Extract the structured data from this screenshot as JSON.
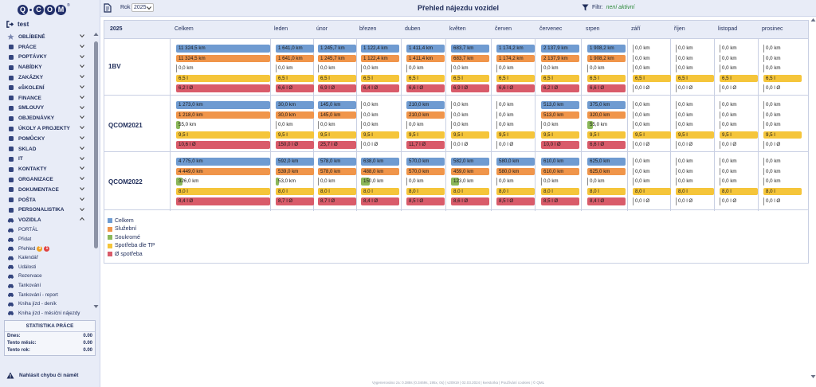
{
  "brand": {
    "logo_letters": [
      "Q",
      "C",
      "O",
      "M"
    ],
    "reg": "®"
  },
  "user": {
    "name": "test"
  },
  "menu": {
    "items": [
      {
        "label": "OBLÍBENÉ",
        "icon": "star-icon"
      },
      {
        "label": "PRÁCE",
        "icon": "briefcase-icon"
      },
      {
        "label": "POPTÁVKY",
        "icon": "cart-icon"
      },
      {
        "label": "NABÍDKY",
        "icon": "document-icon"
      },
      {
        "label": "ZAKÁZKY",
        "icon": "clipboard-icon"
      },
      {
        "label": "eŠKOLENÍ",
        "icon": "graduation-icon"
      },
      {
        "label": "FINANCE",
        "icon": "money-icon"
      },
      {
        "label": "SMLOUVY",
        "icon": "contract-icon"
      },
      {
        "label": "OBJEDNÁVKY",
        "icon": "order-icon"
      },
      {
        "label": "ÚKOLY A PROJEKTY",
        "icon": "tasks-icon"
      },
      {
        "label": "POMŮCKY",
        "icon": "tools-icon"
      },
      {
        "label": "SKLAD",
        "icon": "warehouse-icon"
      },
      {
        "label": "IT",
        "icon": "computer-icon"
      },
      {
        "label": "KONTAKTY",
        "icon": "contacts-icon"
      },
      {
        "label": "ORGANIZACE",
        "icon": "organization-icon"
      },
      {
        "label": "DOKUMENTACE",
        "icon": "folder-icon"
      },
      {
        "label": "POŠTA",
        "icon": "mail-icon"
      },
      {
        "label": "PERSONALISTIKA",
        "icon": "people-icon"
      },
      {
        "label": "VOZIDLA",
        "icon": "car-icon"
      }
    ],
    "sub_items": [
      {
        "label": "PORTÁL"
      },
      {
        "label": "Přidat"
      },
      {
        "label": "Přehled",
        "badges": [
          "3",
          "1"
        ]
      },
      {
        "label": "Kalendář"
      },
      {
        "label": "Události"
      },
      {
        "label": "Rezervace"
      },
      {
        "label": "Tankování"
      },
      {
        "label": "Tankování - report"
      },
      {
        "label": "Kniha jízd - deník"
      },
      {
        "label": "Kniha jízd - měsíční nájezdy"
      }
    ]
  },
  "stats": {
    "title": "STATISTIKA PRÁCE",
    "rows": [
      {
        "label": "Dnes:",
        "value": "0.00"
      },
      {
        "label": "Tento měsíc:",
        "value": "0.00"
      },
      {
        "label": "Tento rok:",
        "value": "0.00"
      }
    ]
  },
  "report": {
    "label": "Nahlásit chybu či námět"
  },
  "topbar": {
    "year_label": "Rok",
    "year_value": "2025",
    "title": "Přehled nájezdu vozidel",
    "filter_label": "Filtr:",
    "filter_value": "není aktivní"
  },
  "table": {
    "year": "2025",
    "columns": [
      "Celkem",
      "leden",
      "únor",
      "březen",
      "duben",
      "květen",
      "červen",
      "červenec",
      "srpen",
      "září",
      "říjen",
      "listopad",
      "prosinec"
    ],
    "vehicles": [
      {
        "name": "1BV",
        "celkem": [
          "11 324,5 km",
          "11 324,5 km",
          "0,0 km",
          "6,5 l",
          "6,2 l Ø"
        ],
        "months": [
          [
            "1 641,0 km",
            "1 641,0 km",
            "0,0 km",
            "6,5 l",
            "6,6 l Ø"
          ],
          [
            "1 245,7 km",
            "1 245,7 km",
            "0,0 km",
            "6,5 l",
            "6,9 l Ø"
          ],
          [
            "1 122,4 km",
            "1 122,4 km",
            "0,0 km",
            "6,5 l",
            "6,4 l Ø"
          ],
          [
            "1 411,4 km",
            "1 411,4 km",
            "0,0 km",
            "6,5 l",
            "6,6 l Ø"
          ],
          [
            "683,7 km",
            "683,7 km",
            "0,0 km",
            "6,5 l",
            "6,9 l Ø"
          ],
          [
            "1 174,2 km",
            "1 174,2 km",
            "0,0 km",
            "6,5 l",
            "6,6 l Ø"
          ],
          [
            "2 137,9 km",
            "2 137,9 km",
            "0,0 km",
            "6,5 l",
            "6,2 l Ø"
          ],
          [
            "1 908,2 km",
            "1 908,2 km",
            "0,0 km",
            "6,5 l",
            "6,6 l Ø"
          ],
          [
            "0,0 km",
            "0,0 km",
            "0,0 km",
            "6,5 l",
            "0,0 l Ø"
          ],
          [
            "0,0 km",
            "0,0 km",
            "0,0 km",
            "6,5 l",
            "0,0 l Ø"
          ],
          [
            "0,0 km",
            "0,0 km",
            "0,0 km",
            "6,5 l",
            "0,0 l Ø"
          ],
          [
            "0,0 km",
            "0,0 km",
            "0,0 km",
            "6,5 l",
            "0,0 l Ø"
          ]
        ]
      },
      {
        "name": "QCOM2021",
        "celkem": [
          "1 273,0 km",
          "1 218,0 km",
          "55,0 km",
          "9,5 l",
          "10,6 l Ø"
        ],
        "months": [
          [
            "30,0 km",
            "30,0 km",
            "0,0 km",
            "9,5 l",
            "150,0 l Ø"
          ],
          [
            "145,0 km",
            "145,0 km",
            "0,0 km",
            "9,5 l",
            "25,7 l Ø"
          ],
          [
            "0,0 km",
            "0,0 km",
            "0,0 km",
            "9,5 l",
            "0,0 l Ø"
          ],
          [
            "210,0 km",
            "210,0 km",
            "0,0 km",
            "9,5 l",
            "11,7 l Ø"
          ],
          [
            "0,0 km",
            "0,0 km",
            "0,0 km",
            "9,5 l",
            "0,0 l Ø"
          ],
          [
            "0,0 km",
            "0,0 km",
            "0,0 km",
            "9,5 l",
            "0,0 l Ø"
          ],
          [
            "513,0 km",
            "513,0 km",
            "0,0 km",
            "9,5 l",
            "10,0 l Ø"
          ],
          [
            "375,0 km",
            "320,0 km",
            "55,0 km",
            "9,5 l",
            "6,6 l Ø"
          ],
          [
            "0,0 km",
            "0,0 km",
            "0,0 km",
            "9,5 l",
            "0,0 l Ø"
          ],
          [
            "0,0 km",
            "0,0 km",
            "0,0 km",
            "9,5 l",
            "0,0 l Ø"
          ],
          [
            "0,0 km",
            "0,0 km",
            "0,0 km",
            "9,5 l",
            "0,0 l Ø"
          ],
          [
            "0,0 km",
            "0,0 km",
            "0,0 km",
            "9,5 l",
            "0,0 l Ø"
          ]
        ]
      },
      {
        "name": "QCOM2022",
        "celkem": [
          "4 775,0 km",
          "4 449,0 km",
          "326,0 km",
          "8,0 l",
          "8,4 l Ø"
        ],
        "months": [
          [
            "592,0 km",
            "539,0 km",
            "53,0 km",
            "8,0 l",
            "8,7 l Ø"
          ],
          [
            "578,0 km",
            "578,0 km",
            "0,0 km",
            "8,0 l",
            "8,7 l Ø"
          ],
          [
            "638,0 km",
            "488,0 km",
            "150,0 km",
            "8,0 l",
            "8,4 l Ø"
          ],
          [
            "570,0 km",
            "570,0 km",
            "0,0 km",
            "8,0 l",
            "8,5 l Ø"
          ],
          [
            "582,0 km",
            "459,0 km",
            "123,0 km",
            "8,0 l",
            "8,6 l Ø"
          ],
          [
            "580,0 km",
            "580,0 km",
            "0,0 km",
            "8,0 l",
            "8,5 l Ø"
          ],
          [
            "610,0 km",
            "610,0 km",
            "0,0 km",
            "8,0 l",
            "8,5 l Ø"
          ],
          [
            "625,0 km",
            "625,0 km",
            "0,0 km",
            "8,0 l",
            "8,4 l Ø"
          ],
          [
            "0,0 km",
            "0,0 km",
            "0,0 km",
            "8,0 l",
            "0,0 l Ø"
          ],
          [
            "0,0 km",
            "0,0 km",
            "0,0 km",
            "8,0 l",
            "0,0 l Ø"
          ],
          [
            "0,0 km",
            "0,0 km",
            "0,0 km",
            "8,0 l",
            "0,0 l Ø"
          ],
          [
            "0,0 km",
            "0,0 km",
            "0,0 km",
            "8,0 l",
            "0,0 l Ø"
          ]
        ]
      }
    ]
  },
  "colors": {
    "celkem": "#6f9bd1",
    "sluzebni": "#f0954a",
    "soukrome": "#8bb85a",
    "spotreba_tp": "#f5c53a",
    "prumer": "#d95b6a"
  },
  "legend": [
    "Celkem",
    "Služební",
    "Soukromé",
    "Spotřeba dle TP",
    "Ø spotřeba"
  ],
  "footer": "Vygenerováno za: 0.388s (0.3469s, 195x, 0s) | v20919 | 02.03.2024 | kvestorka | Používání cookies | © QML"
}
